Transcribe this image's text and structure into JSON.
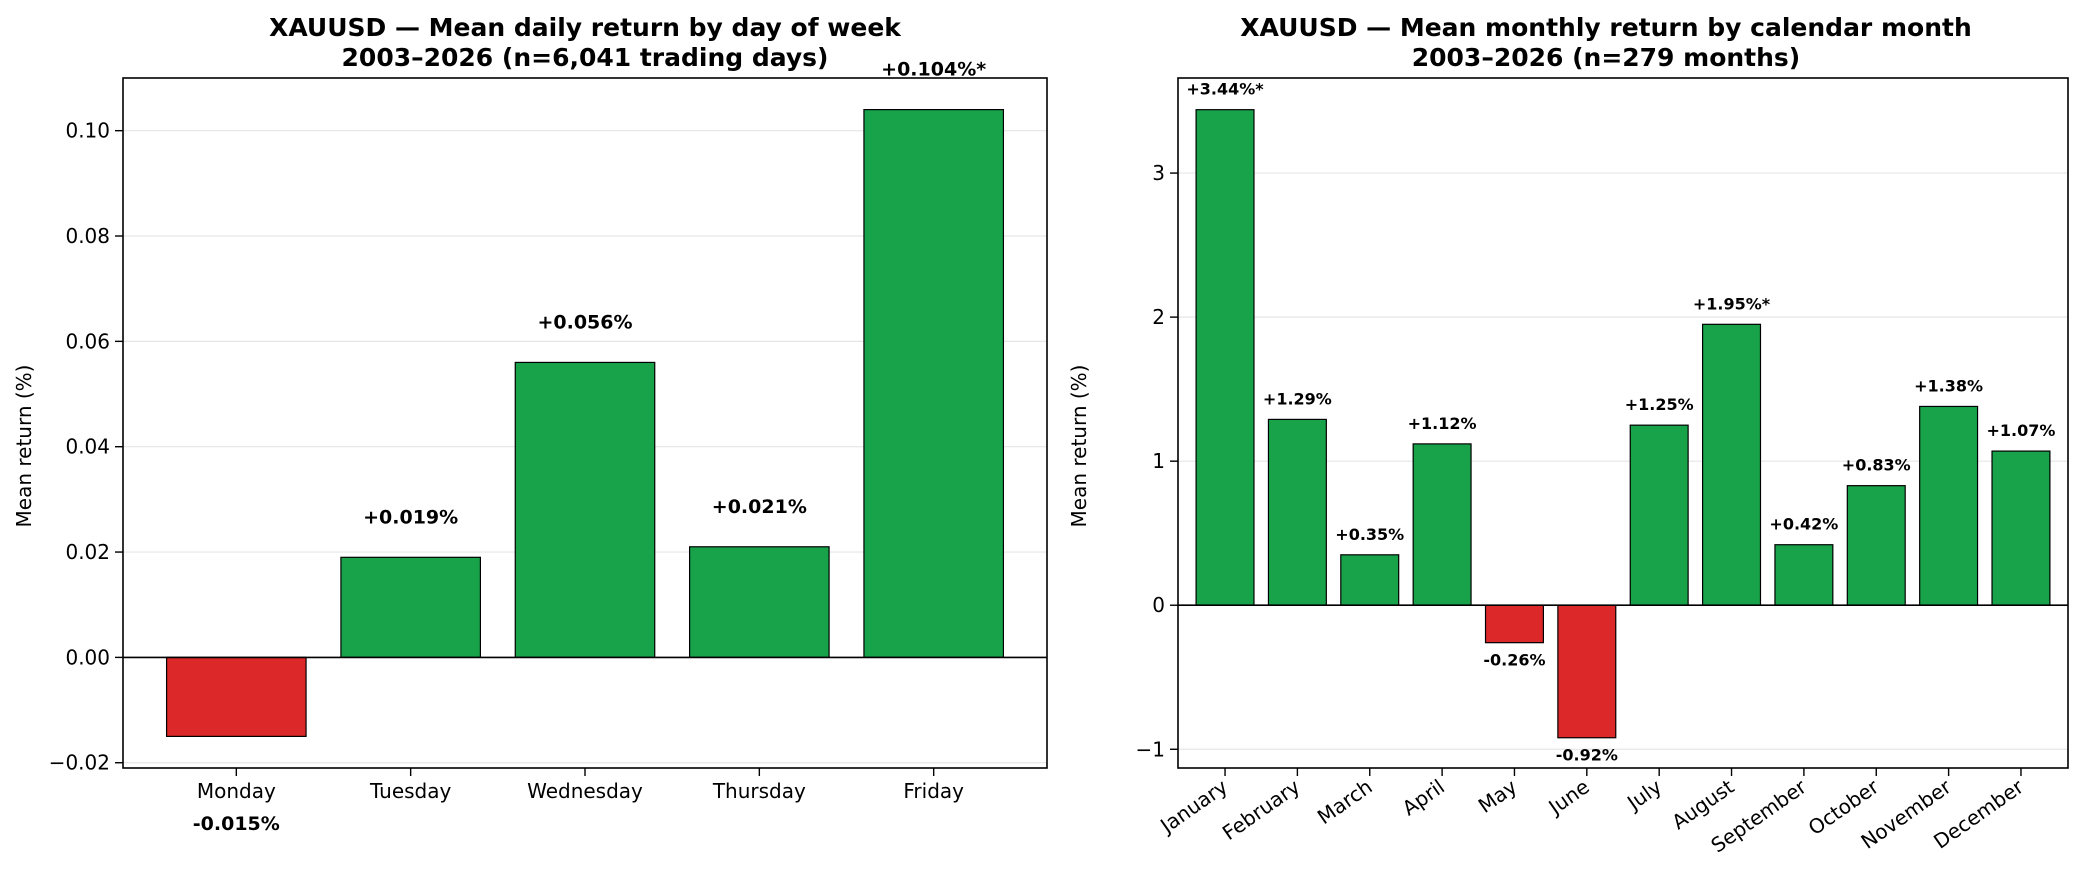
{
  "colors": {
    "positive": "#18a34a",
    "negative": "#dc2828",
    "grid": "#e6e6e6",
    "axis": "#000000"
  },
  "chart_data": [
    {
      "type": "bar",
      "title": "XAUUSD — Mean daily return by day of week",
      "subtitle": "2003–2026 (n=6,041 trading days)",
      "xlabel": "",
      "ylabel": "Mean return (%)",
      "categories": [
        "Monday",
        "Tuesday",
        "Wednesday",
        "Thursday",
        "Friday"
      ],
      "values": [
        -0.015,
        0.019,
        0.056,
        0.021,
        0.104
      ],
      "data_labels": [
        "-0.015%",
        "+0.019%",
        "+0.056%",
        "+0.021%",
        "+0.104%*"
      ],
      "ylim": [
        -0.021,
        0.11
      ],
      "yticks": [
        -0.02,
        0.0,
        0.02,
        0.04,
        0.06,
        0.08,
        0.1
      ],
      "ytick_labels": [
        "−0.02",
        "0.00",
        "0.02",
        "0.04",
        "0.06",
        "0.08",
        "0.10"
      ],
      "grid": "horizontal",
      "legend": "none"
    },
    {
      "type": "bar",
      "title": "XAUUSD — Mean monthly return by calendar month",
      "subtitle": "2003–2026 (n=279 months)",
      "xlabel": "",
      "ylabel": "Mean return (%)",
      "categories": [
        "January",
        "February",
        "March",
        "April",
        "May",
        "June",
        "July",
        "August",
        "September",
        "October",
        "November",
        "December"
      ],
      "values": [
        3.44,
        1.29,
        0.35,
        1.12,
        -0.26,
        -0.92,
        1.25,
        1.95,
        0.42,
        0.83,
        1.38,
        1.07
      ],
      "data_labels": [
        "+3.44%*",
        "+1.29%",
        "+0.35%",
        "+1.12%",
        "-0.26%",
        "-0.92%",
        "+1.25%",
        "+1.95%*",
        "+0.42%",
        "+0.83%",
        "+1.38%",
        "+1.07%"
      ],
      "ylim": [
        -1.13,
        3.66
      ],
      "yticks": [
        -1,
        0,
        1,
        2,
        3
      ],
      "ytick_labels": [
        "−1",
        "0",
        "1",
        "2",
        "3"
      ],
      "grid": "horizontal",
      "legend": "none"
    }
  ]
}
